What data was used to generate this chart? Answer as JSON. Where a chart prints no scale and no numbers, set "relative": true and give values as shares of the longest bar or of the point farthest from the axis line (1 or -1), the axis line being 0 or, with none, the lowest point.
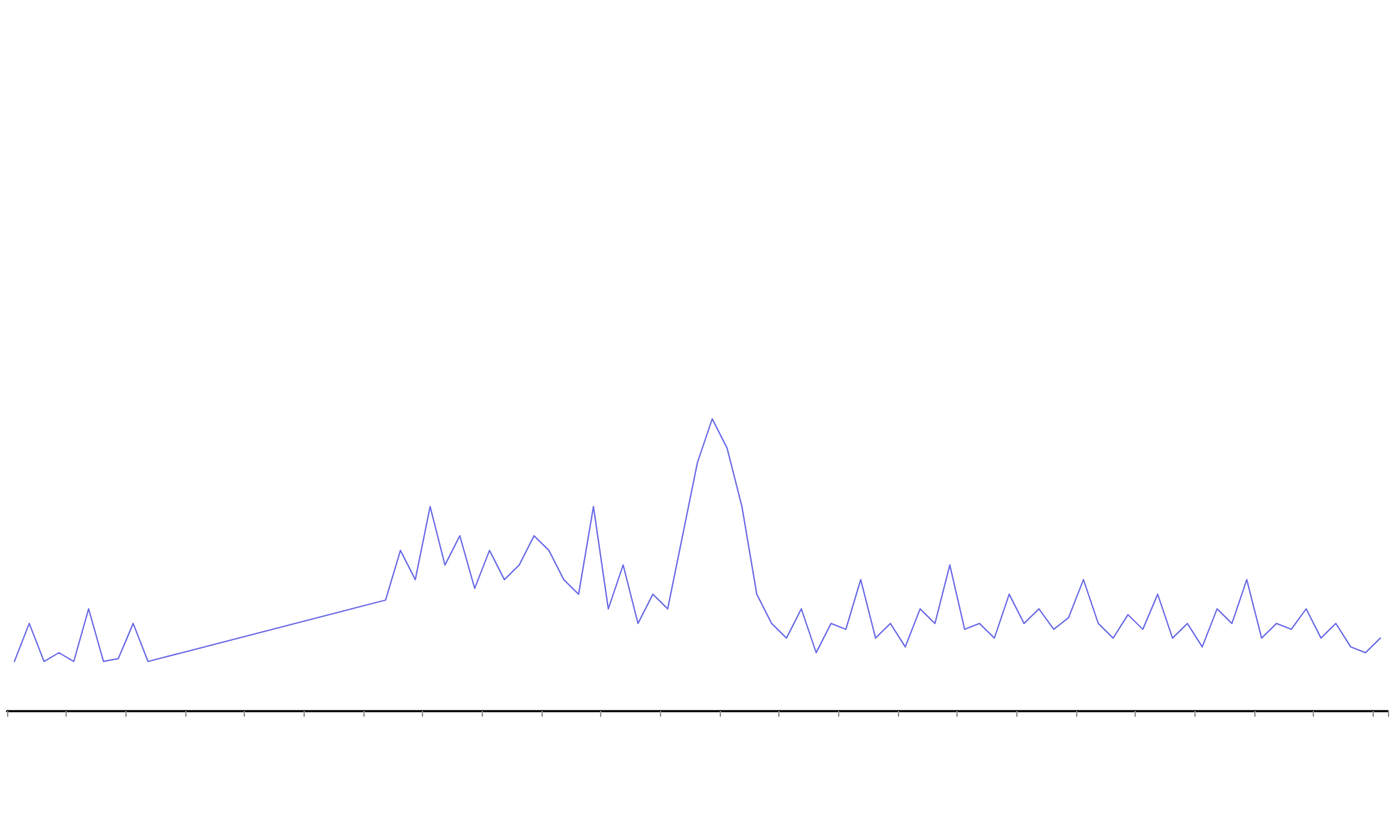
{
  "chart_data": {
    "type": "line",
    "relative": true,
    "categories": [
      null,
      null,
      null,
      null,
      null,
      null,
      null,
      null,
      null,
      null,
      null,
      null,
      null,
      null,
      null,
      null,
      null,
      null,
      null,
      null,
      null,
      null,
      null,
      null,
      null,
      null,
      null,
      null,
      null,
      null,
      null,
      null,
      null,
      null,
      null,
      null,
      null,
      null,
      null,
      null,
      null,
      null,
      null,
      null,
      null,
      null,
      null,
      null,
      null,
      null,
      null,
      null,
      null,
      null,
      null,
      null,
      null,
      null,
      null,
      null,
      null,
      null,
      null,
      null,
      null,
      null,
      null,
      null,
      null,
      null,
      null,
      null,
      null,
      null,
      null,
      null,
      null,
      null,
      null,
      null,
      null,
      null,
      null,
      null,
      null,
      null,
      null,
      null,
      null,
      null,
      null,
      null,
      null
    ],
    "series": [
      {
        "color": "#6f6fe8",
        "values": [
          0.17,
          0.3,
          0.17,
          0.2,
          0.17,
          0.35,
          0.17,
          0.18,
          0.3,
          0.17,
          null,
          null,
          null,
          null,
          null,
          null,
          null,
          null,
          null,
          null,
          null,
          null,
          null,
          null,
          null,
          0.38,
          0.55,
          0.45,
          0.7,
          0.5,
          0.6,
          0.42,
          0.55,
          0.45,
          0.5,
          0.6,
          0.55,
          0.45,
          0.4,
          0.7,
          0.35,
          0.5,
          0.3,
          0.4,
          0.35,
          0.6,
          0.85,
          1,
          0.9,
          0.7,
          0.4,
          0.3,
          0.25,
          0.35,
          0.2,
          0.3,
          0.28,
          0.45,
          0.25,
          0.3,
          0.22,
          0.35,
          0.3,
          0.5,
          0.28,
          0.3,
          0.25,
          0.4,
          0.3,
          0.35,
          0.28,
          0.32,
          0.45,
          0.3,
          0.25,
          0.33,
          0.28,
          0.4,
          0.25,
          0.3,
          0.22,
          0.35,
          0.3,
          0.45,
          0.25,
          0.3,
          0.28,
          0.35,
          0.25,
          0.3,
          0.22,
          0.2,
          0.25
        ]
      }
    ],
    "grid": false,
    "marker": "none",
    "line_style": "solid"
  }
}
